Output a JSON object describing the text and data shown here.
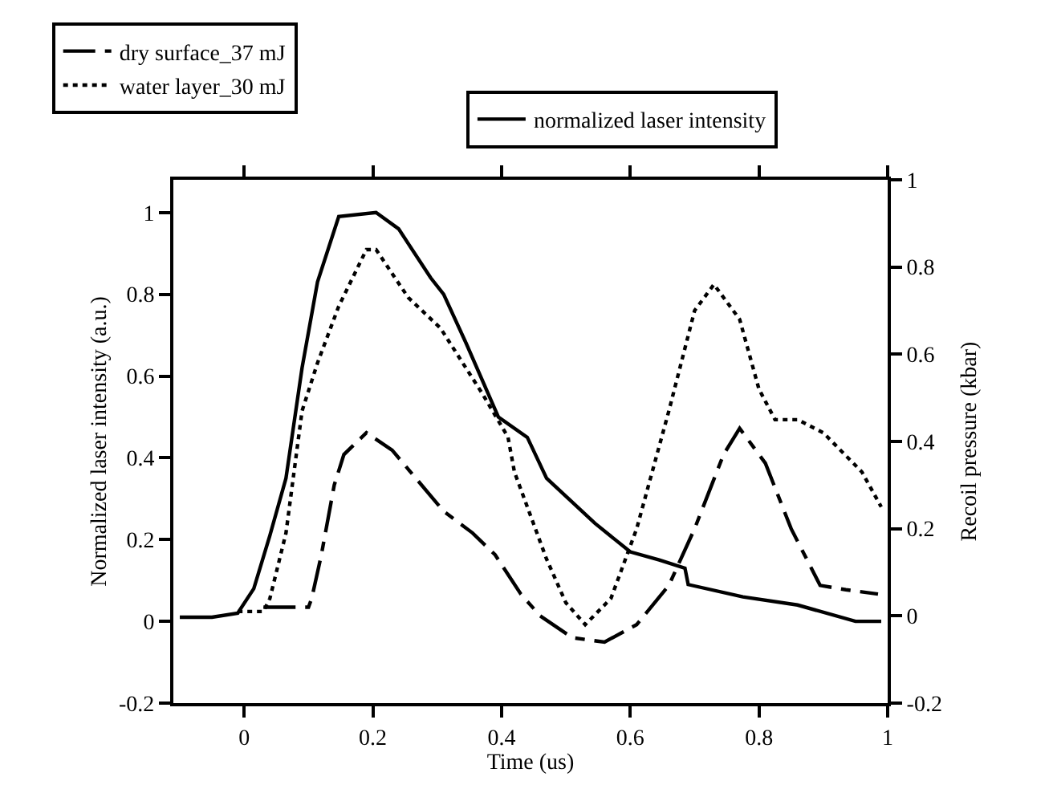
{
  "chart_data": {
    "type": "line",
    "xlabel": "Time (us)",
    "ylabel": "Normalized laser intensity (a.u.)",
    "y2label": "Recoil pressure (kbar)",
    "xlim": [
      -0.11,
      1.0
    ],
    "xticks": [
      0,
      0.2,
      0.4,
      0.6,
      0.8,
      1
    ],
    "ylim": [
      -0.2,
      1.08
    ],
    "yticks": [
      -0.2,
      0,
      0.2,
      0.4,
      0.6,
      0.8,
      1
    ],
    "y2lim": [
      -0.2,
      1.0
    ],
    "y2ticks": [
      -0.2,
      0,
      0.2,
      0.4,
      0.6,
      0.8,
      1
    ],
    "legend": "top",
    "marker": "none",
    "series": [
      {
        "name": "normalized laser intensity",
        "color": "#000000",
        "line_style": "solid",
        "axis": "y",
        "x": [
          -0.1,
          -0.05,
          -0.01,
          0.015,
          0.04,
          0.065,
          0.09,
          0.114,
          0.147,
          0.205,
          0.24,
          0.29,
          0.31,
          0.345,
          0.395,
          0.44,
          0.47,
          0.545,
          0.6,
          0.645,
          0.685,
          0.69,
          0.775,
          0.86,
          0.95,
          0.99
        ],
        "values": [
          0.01,
          0.01,
          0.02,
          0.08,
          0.21,
          0.35,
          0.62,
          0.83,
          0.99,
          1.0,
          0.96,
          0.84,
          0.8,
          0.68,
          0.5,
          0.45,
          0.35,
          0.24,
          0.17,
          0.15,
          0.13,
          0.09,
          0.06,
          0.04,
          0.0,
          0.0
        ]
      },
      {
        "name": "dry surface_37 mJ",
        "color": "#000000",
        "line_style": "dashed",
        "axis": "y2",
        "x": [
          0.03,
          0.1,
          0.105,
          0.12,
          0.14,
          0.155,
          0.19,
          0.23,
          0.27,
          0.31,
          0.355,
          0.39,
          0.43,
          0.46,
          0.51,
          0.56,
          0.61,
          0.66,
          0.7,
          0.745,
          0.77,
          0.81,
          0.85,
          0.895,
          0.935,
          0.985
        ],
        "values": [
          0.02,
          0.02,
          0.04,
          0.14,
          0.3,
          0.37,
          0.42,
          0.38,
          0.31,
          0.24,
          0.19,
          0.14,
          0.05,
          0.0,
          -0.05,
          -0.06,
          -0.02,
          0.07,
          0.2,
          0.37,
          0.43,
          0.35,
          0.2,
          0.07,
          0.06,
          0.05
        ]
      },
      {
        "name": "water layer_30 mJ",
        "color": "#000000",
        "line_style": "dotted",
        "axis": "y2",
        "x": [
          -0.01,
          0.03,
          0.04,
          0.065,
          0.09,
          0.114,
          0.147,
          0.19,
          0.205,
          0.255,
          0.305,
          0.37,
          0.41,
          0.42,
          0.47,
          0.5,
          0.53,
          0.57,
          0.61,
          0.66,
          0.7,
          0.73,
          0.77,
          0.8,
          0.825,
          0.86,
          0.9,
          0.96,
          0.99
        ],
        "values": [
          0.01,
          0.01,
          0.04,
          0.19,
          0.47,
          0.58,
          0.71,
          0.84,
          0.84,
          0.73,
          0.66,
          0.51,
          0.41,
          0.33,
          0.13,
          0.03,
          -0.02,
          0.04,
          0.2,
          0.47,
          0.7,
          0.76,
          0.68,
          0.52,
          0.45,
          0.45,
          0.42,
          0.33,
          0.25
        ]
      }
    ]
  }
}
